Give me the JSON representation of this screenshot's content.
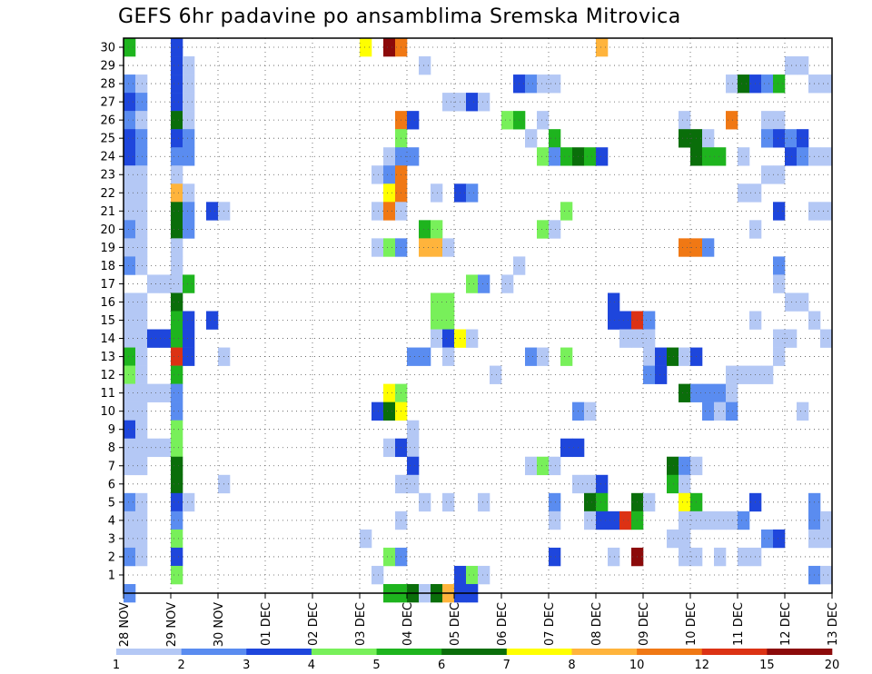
{
  "chart_data": {
    "type": "heatmap",
    "title": "GEFS 6hr padavine po ansamblima Sremska Mitrovica",
    "x_tick_labels": [
      "28 NOV",
      "29 NOV",
      "30 NOV",
      "01 DEC",
      "02 DEC",
      "03 DEC",
      "04 DEC",
      "05 DEC",
      "06 DEC",
      "07 DEC",
      "08 DEC",
      "09 DEC",
      "10 DEC",
      "11 DEC",
      "12 DEC",
      "13 DEC"
    ],
    "x_steps_per_day": 4,
    "y_tick_labels": [
      "1",
      "2",
      "3",
      "4",
      "5",
      "6",
      "7",
      "8",
      "9",
      "10",
      "11",
      "12",
      "13",
      "14",
      "15",
      "16",
      "17",
      "18",
      "19",
      "20",
      "21",
      "22",
      "23",
      "24",
      "25",
      "26",
      "27",
      "28",
      "29",
      "30"
    ],
    "y_range": [
      0,
      30
    ],
    "grid": true,
    "colorbar": {
      "labels": [
        "1",
        "2",
        "3",
        "4",
        "5",
        "6",
        "7",
        "8",
        "10",
        "12",
        "15",
        "20"
      ],
      "colors": [
        "#b4c8f5",
        "#5a8cf0",
        "#1e46dc",
        "#78f05a",
        "#1eb41e",
        "#0a6e0a",
        "#ffff00",
        "#ffb43c",
        "#f07814",
        "#dc3214",
        "#8c0a0a"
      ]
    },
    "cells": [
      [
        0,
        30,
        4
      ],
      [
        0,
        28,
        1
      ],
      [
        0,
        27,
        2
      ],
      [
        0,
        26,
        1
      ],
      [
        0,
        25,
        2
      ],
      [
        0,
        24,
        2
      ],
      [
        0,
        23,
        0
      ],
      [
        0,
        22,
        0
      ],
      [
        0,
        21,
        0
      ],
      [
        0,
        20,
        1
      ],
      [
        0,
        19,
        0
      ],
      [
        0,
        18,
        1
      ],
      [
        0,
        16,
        0
      ],
      [
        0,
        15,
        0
      ],
      [
        0,
        14,
        0
      ],
      [
        0,
        13,
        4
      ],
      [
        0,
        12,
        3
      ],
      [
        0,
        11,
        0
      ],
      [
        0,
        10,
        0
      ],
      [
        0,
        9,
        2
      ],
      [
        0,
        8,
        0
      ],
      [
        0,
        7,
        0
      ],
      [
        0,
        5,
        1
      ],
      [
        0,
        4,
        0
      ],
      [
        0,
        3,
        0
      ],
      [
        0,
        2,
        1
      ],
      [
        0,
        0,
        1
      ],
      [
        1,
        28,
        0
      ],
      [
        1,
        27,
        1
      ],
      [
        1,
        26,
        0
      ],
      [
        1,
        25,
        1
      ],
      [
        1,
        24,
        1
      ],
      [
        1,
        23,
        0
      ],
      [
        1,
        22,
        0
      ],
      [
        1,
        21,
        0
      ],
      [
        1,
        20,
        0
      ],
      [
        1,
        19,
        0
      ],
      [
        1,
        18,
        0
      ],
      [
        1,
        16,
        0
      ],
      [
        1,
        15,
        0
      ],
      [
        1,
        14,
        0
      ],
      [
        1,
        13,
        0
      ],
      [
        1,
        12,
        0
      ],
      [
        1,
        11,
        0
      ],
      [
        1,
        10,
        0
      ],
      [
        1,
        9,
        0
      ],
      [
        1,
        8,
        0
      ],
      [
        1,
        7,
        0
      ],
      [
        1,
        5,
        0
      ],
      [
        1,
        4,
        0
      ],
      [
        1,
        3,
        0
      ],
      [
        1,
        2,
        0
      ],
      [
        2,
        17,
        0
      ],
      [
        2,
        14,
        2
      ],
      [
        2,
        11,
        0
      ],
      [
        2,
        8,
        0
      ],
      [
        3,
        17,
        0
      ],
      [
        3,
        14,
        2
      ],
      [
        3,
        11,
        0
      ],
      [
        3,
        8,
        0
      ],
      [
        4,
        30,
        2
      ],
      [
        4,
        29,
        2
      ],
      [
        4,
        28,
        2
      ],
      [
        4,
        27,
        2
      ],
      [
        4,
        26,
        5
      ],
      [
        4,
        25,
        2
      ],
      [
        4,
        24,
        1
      ],
      [
        4,
        23,
        0
      ],
      [
        4,
        22,
        7
      ],
      [
        4,
        21,
        5
      ],
      [
        4,
        20,
        5
      ],
      [
        4,
        19,
        0
      ],
      [
        4,
        18,
        0
      ],
      [
        4,
        17,
        0
      ],
      [
        4,
        16,
        5
      ],
      [
        4,
        15,
        4
      ],
      [
        4,
        14,
        4
      ],
      [
        4,
        13,
        9
      ],
      [
        4,
        12,
        4
      ],
      [
        4,
        11,
        1
      ],
      [
        4,
        10,
        1
      ],
      [
        4,
        9,
        3
      ],
      [
        4,
        8,
        3
      ],
      [
        4,
        7,
        5
      ],
      [
        4,
        6,
        5
      ],
      [
        4,
        5,
        2
      ],
      [
        4,
        4,
        1
      ],
      [
        4,
        3,
        3
      ],
      [
        4,
        2,
        2
      ],
      [
        4,
        1,
        3
      ],
      [
        5,
        29,
        0
      ],
      [
        5,
        28,
        0
      ],
      [
        5,
        27,
        0
      ],
      [
        5,
        26,
        0
      ],
      [
        5,
        25,
        1
      ],
      [
        5,
        24,
        1
      ],
      [
        5,
        22,
        0
      ],
      [
        5,
        21,
        1
      ],
      [
        5,
        20,
        1
      ],
      [
        5,
        17,
        4
      ],
      [
        5,
        15,
        2
      ],
      [
        5,
        14,
        2
      ],
      [
        5,
        13,
        2
      ],
      [
        5,
        5,
        0
      ],
      [
        7,
        21,
        2
      ],
      [
        7,
        15,
        2
      ],
      [
        8,
        21,
        0
      ],
      [
        8,
        13,
        0
      ],
      [
        8,
        6,
        0
      ],
      [
        20,
        30,
        6
      ],
      [
        20,
        3,
        0
      ],
      [
        21,
        23,
        0
      ],
      [
        21,
        21,
        0
      ],
      [
        21,
        19,
        0
      ],
      [
        21,
        10,
        2
      ],
      [
        21,
        1,
        0
      ],
      [
        22,
        30,
        10
      ],
      [
        22,
        24,
        0
      ],
      [
        22,
        23,
        1
      ],
      [
        22,
        22,
        6
      ],
      [
        22,
        21,
        8
      ],
      [
        22,
        19,
        3
      ],
      [
        22,
        11,
        6
      ],
      [
        22,
        10,
        5
      ],
      [
        22,
        8,
        0
      ],
      [
        22,
        2,
        3
      ],
      [
        22,
        0,
        4
      ],
      [
        23,
        30,
        8
      ],
      [
        23,
        26,
        8
      ],
      [
        23,
        25,
        3
      ],
      [
        23,
        24,
        1
      ],
      [
        23,
        23,
        8
      ],
      [
        23,
        22,
        8
      ],
      [
        23,
        21,
        0
      ],
      [
        23,
        19,
        1
      ],
      [
        23,
        11,
        3
      ],
      [
        23,
        10,
        6
      ],
      [
        23,
        8,
        2
      ],
      [
        23,
        6,
        0
      ],
      [
        23,
        4,
        0
      ],
      [
        23,
        2,
        1
      ],
      [
        23,
        0,
        4
      ],
      [
        24,
        26,
        2
      ],
      [
        24,
        24,
        1
      ],
      [
        24,
        13,
        1
      ],
      [
        24,
        8,
        0
      ],
      [
        24,
        9,
        0
      ],
      [
        24,
        7,
        2
      ],
      [
        24,
        6,
        0
      ],
      [
        24,
        0,
        5
      ],
      [
        25,
        29,
        0
      ],
      [
        25,
        20,
        4
      ],
      [
        25,
        19,
        7
      ],
      [
        25,
        13,
        1
      ],
      [
        25,
        5,
        0
      ],
      [
        25,
        0,
        0
      ],
      [
        26,
        22,
        0
      ],
      [
        26,
        20,
        3
      ],
      [
        26,
        19,
        7
      ],
      [
        26,
        16,
        3
      ],
      [
        26,
        15,
        3
      ],
      [
        26,
        14,
        0
      ],
      [
        26,
        0,
        5
      ],
      [
        27,
        27,
        0
      ],
      [
        27,
        19,
        0
      ],
      [
        27,
        16,
        3
      ],
      [
        27,
        15,
        3
      ],
      [
        27,
        14,
        2
      ],
      [
        27,
        13,
        0
      ],
      [
        27,
        5,
        0
      ],
      [
        27,
        0,
        7
      ],
      [
        28,
        27,
        0
      ],
      [
        28,
        22,
        2
      ],
      [
        28,
        14,
        6
      ],
      [
        28,
        1,
        2
      ],
      [
        28,
        0,
        2
      ],
      [
        29,
        27,
        2
      ],
      [
        29,
        22,
        1
      ],
      [
        29,
        17,
        3
      ],
      [
        29,
        14,
        0
      ],
      [
        29,
        1,
        3
      ],
      [
        29,
        0,
        2
      ],
      [
        30,
        27,
        0
      ],
      [
        30,
        17,
        1
      ],
      [
        30,
        5,
        0
      ],
      [
        30,
        1,
        0
      ],
      [
        31,
        12,
        0
      ],
      [
        32,
        26,
        3
      ],
      [
        32,
        17,
        0
      ],
      [
        33,
        28,
        2
      ],
      [
        33,
        26,
        4
      ],
      [
        33,
        18,
        0
      ],
      [
        34,
        28,
        1
      ],
      [
        34,
        25,
        0
      ],
      [
        34,
        13,
        1
      ],
      [
        34,
        7,
        0
      ],
      [
        35,
        28,
        0
      ],
      [
        35,
        26,
        0
      ],
      [
        35,
        24,
        3
      ],
      [
        35,
        20,
        3
      ],
      [
        35,
        13,
        0
      ],
      [
        35,
        7,
        3
      ],
      [
        36,
        28,
        0
      ],
      [
        36,
        25,
        4
      ],
      [
        36,
        24,
        1
      ],
      [
        36,
        20,
        0
      ],
      [
        36,
        7,
        0
      ],
      [
        36,
        5,
        1
      ],
      [
        36,
        4,
        0
      ],
      [
        36,
        2,
        2
      ],
      [
        37,
        24,
        4
      ],
      [
        37,
        21,
        3
      ],
      [
        37,
        13,
        3
      ],
      [
        37,
        8,
        2
      ],
      [
        38,
        24,
        5
      ],
      [
        38,
        10,
        1
      ],
      [
        38,
        8,
        2
      ],
      [
        38,
        6,
        0
      ],
      [
        39,
        24,
        4
      ],
      [
        39,
        10,
        0
      ],
      [
        39,
        6,
        0
      ],
      [
        39,
        5,
        5
      ],
      [
        39,
        4,
        0
      ],
      [
        40,
        30,
        7
      ],
      [
        40,
        24,
        2
      ],
      [
        40,
        6,
        2
      ],
      [
        40,
        5,
        4
      ],
      [
        40,
        4,
        2
      ],
      [
        41,
        16,
        2
      ],
      [
        41,
        15,
        2
      ],
      [
        41,
        4,
        2
      ],
      [
        41,
        2,
        0
      ],
      [
        42,
        15,
        2
      ],
      [
        42,
        14,
        0
      ],
      [
        42,
        4,
        9
      ],
      [
        43,
        15,
        9
      ],
      [
        43,
        14,
        0
      ],
      [
        43,
        5,
        5
      ],
      [
        43,
        4,
        4
      ],
      [
        43,
        2,
        10
      ],
      [
        44,
        15,
        1
      ],
      [
        44,
        14,
        0
      ],
      [
        44,
        13,
        0
      ],
      [
        44,
        12,
        1
      ],
      [
        44,
        5,
        0
      ],
      [
        45,
        13,
        2
      ],
      [
        45,
        12,
        2
      ],
      [
        46,
        13,
        5
      ],
      [
        46,
        7,
        5
      ],
      [
        46,
        6,
        4
      ],
      [
        46,
        3,
        0
      ],
      [
        47,
        26,
        0
      ],
      [
        47,
        25,
        5
      ],
      [
        47,
        19,
        8
      ],
      [
        47,
        13,
        0
      ],
      [
        47,
        11,
        5
      ],
      [
        47,
        7,
        1
      ],
      [
        47,
        6,
        0
      ],
      [
        47,
        5,
        6
      ],
      [
        47,
        4,
        0
      ],
      [
        47,
        3,
        0
      ],
      [
        47,
        2,
        0
      ],
      [
        48,
        25,
        5
      ],
      [
        48,
        24,
        5
      ],
      [
        48,
        19,
        8
      ],
      [
        48,
        13,
        2
      ],
      [
        48,
        11,
        1
      ],
      [
        48,
        7,
        0
      ],
      [
        48,
        5,
        4
      ],
      [
        48,
        4,
        0
      ],
      [
        48,
        2,
        0
      ],
      [
        49,
        25,
        0
      ],
      [
        49,
        24,
        4
      ],
      [
        49,
        19,
        1
      ],
      [
        49,
        11,
        1
      ],
      [
        49,
        10,
        1
      ],
      [
        49,
        4,
        0
      ],
      [
        50,
        24,
        4
      ],
      [
        50,
        11,
        1
      ],
      [
        50,
        10,
        0
      ],
      [
        50,
        4,
        0
      ],
      [
        50,
        2,
        0
      ],
      [
        51,
        28,
        0
      ],
      [
        51,
        26,
        8
      ],
      [
        51,
        12,
        0
      ],
      [
        51,
        11,
        0
      ],
      [
        51,
        10,
        1
      ],
      [
        51,
        4,
        0
      ],
      [
        52,
        28,
        5
      ],
      [
        52,
        24,
        0
      ],
      [
        52,
        22,
        0
      ],
      [
        52,
        12,
        0
      ],
      [
        52,
        4,
        1
      ],
      [
        52,
        2,
        0
      ],
      [
        53,
        28,
        2
      ],
      [
        53,
        22,
        0
      ],
      [
        53,
        20,
        0
      ],
      [
        53,
        15,
        0
      ],
      [
        53,
        12,
        0
      ],
      [
        53,
        5,
        2
      ],
      [
        53,
        2,
        0
      ],
      [
        54,
        28,
        1
      ],
      [
        54,
        26,
        0
      ],
      [
        54,
        25,
        1
      ],
      [
        54,
        23,
        0
      ],
      [
        54,
        12,
        0
      ],
      [
        54,
        3,
        1
      ],
      [
        55,
        28,
        4
      ],
      [
        55,
        26,
        0
      ],
      [
        55,
        25,
        2
      ],
      [
        55,
        23,
        0
      ],
      [
        55,
        21,
        2
      ],
      [
        55,
        18,
        1
      ],
      [
        55,
        17,
        0
      ],
      [
        55,
        14,
        0
      ],
      [
        55,
        13,
        0
      ],
      [
        55,
        3,
        2
      ],
      [
        56,
        29,
        0
      ],
      [
        56,
        25,
        1
      ],
      [
        56,
        24,
        2
      ],
      [
        56,
        16,
        0
      ],
      [
        56,
        14,
        0
      ],
      [
        57,
        29,
        0
      ],
      [
        57,
        25,
        2
      ],
      [
        57,
        24,
        1
      ],
      [
        57,
        16,
        0
      ],
      [
        57,
        10,
        0
      ],
      [
        58,
        28,
        0
      ],
      [
        58,
        24,
        0
      ],
      [
        58,
        21,
        0
      ],
      [
        58,
        15,
        0
      ],
      [
        58,
        5,
        1
      ],
      [
        58,
        4,
        1
      ],
      [
        58,
        3,
        0
      ],
      [
        58,
        1,
        1
      ],
      [
        59,
        28,
        0
      ],
      [
        59,
        24,
        0
      ],
      [
        59,
        21,
        0
      ],
      [
        59,
        14,
        0
      ],
      [
        59,
        4,
        0
      ],
      [
        59,
        3,
        0
      ],
      [
        59,
        1,
        0
      ]
    ]
  }
}
